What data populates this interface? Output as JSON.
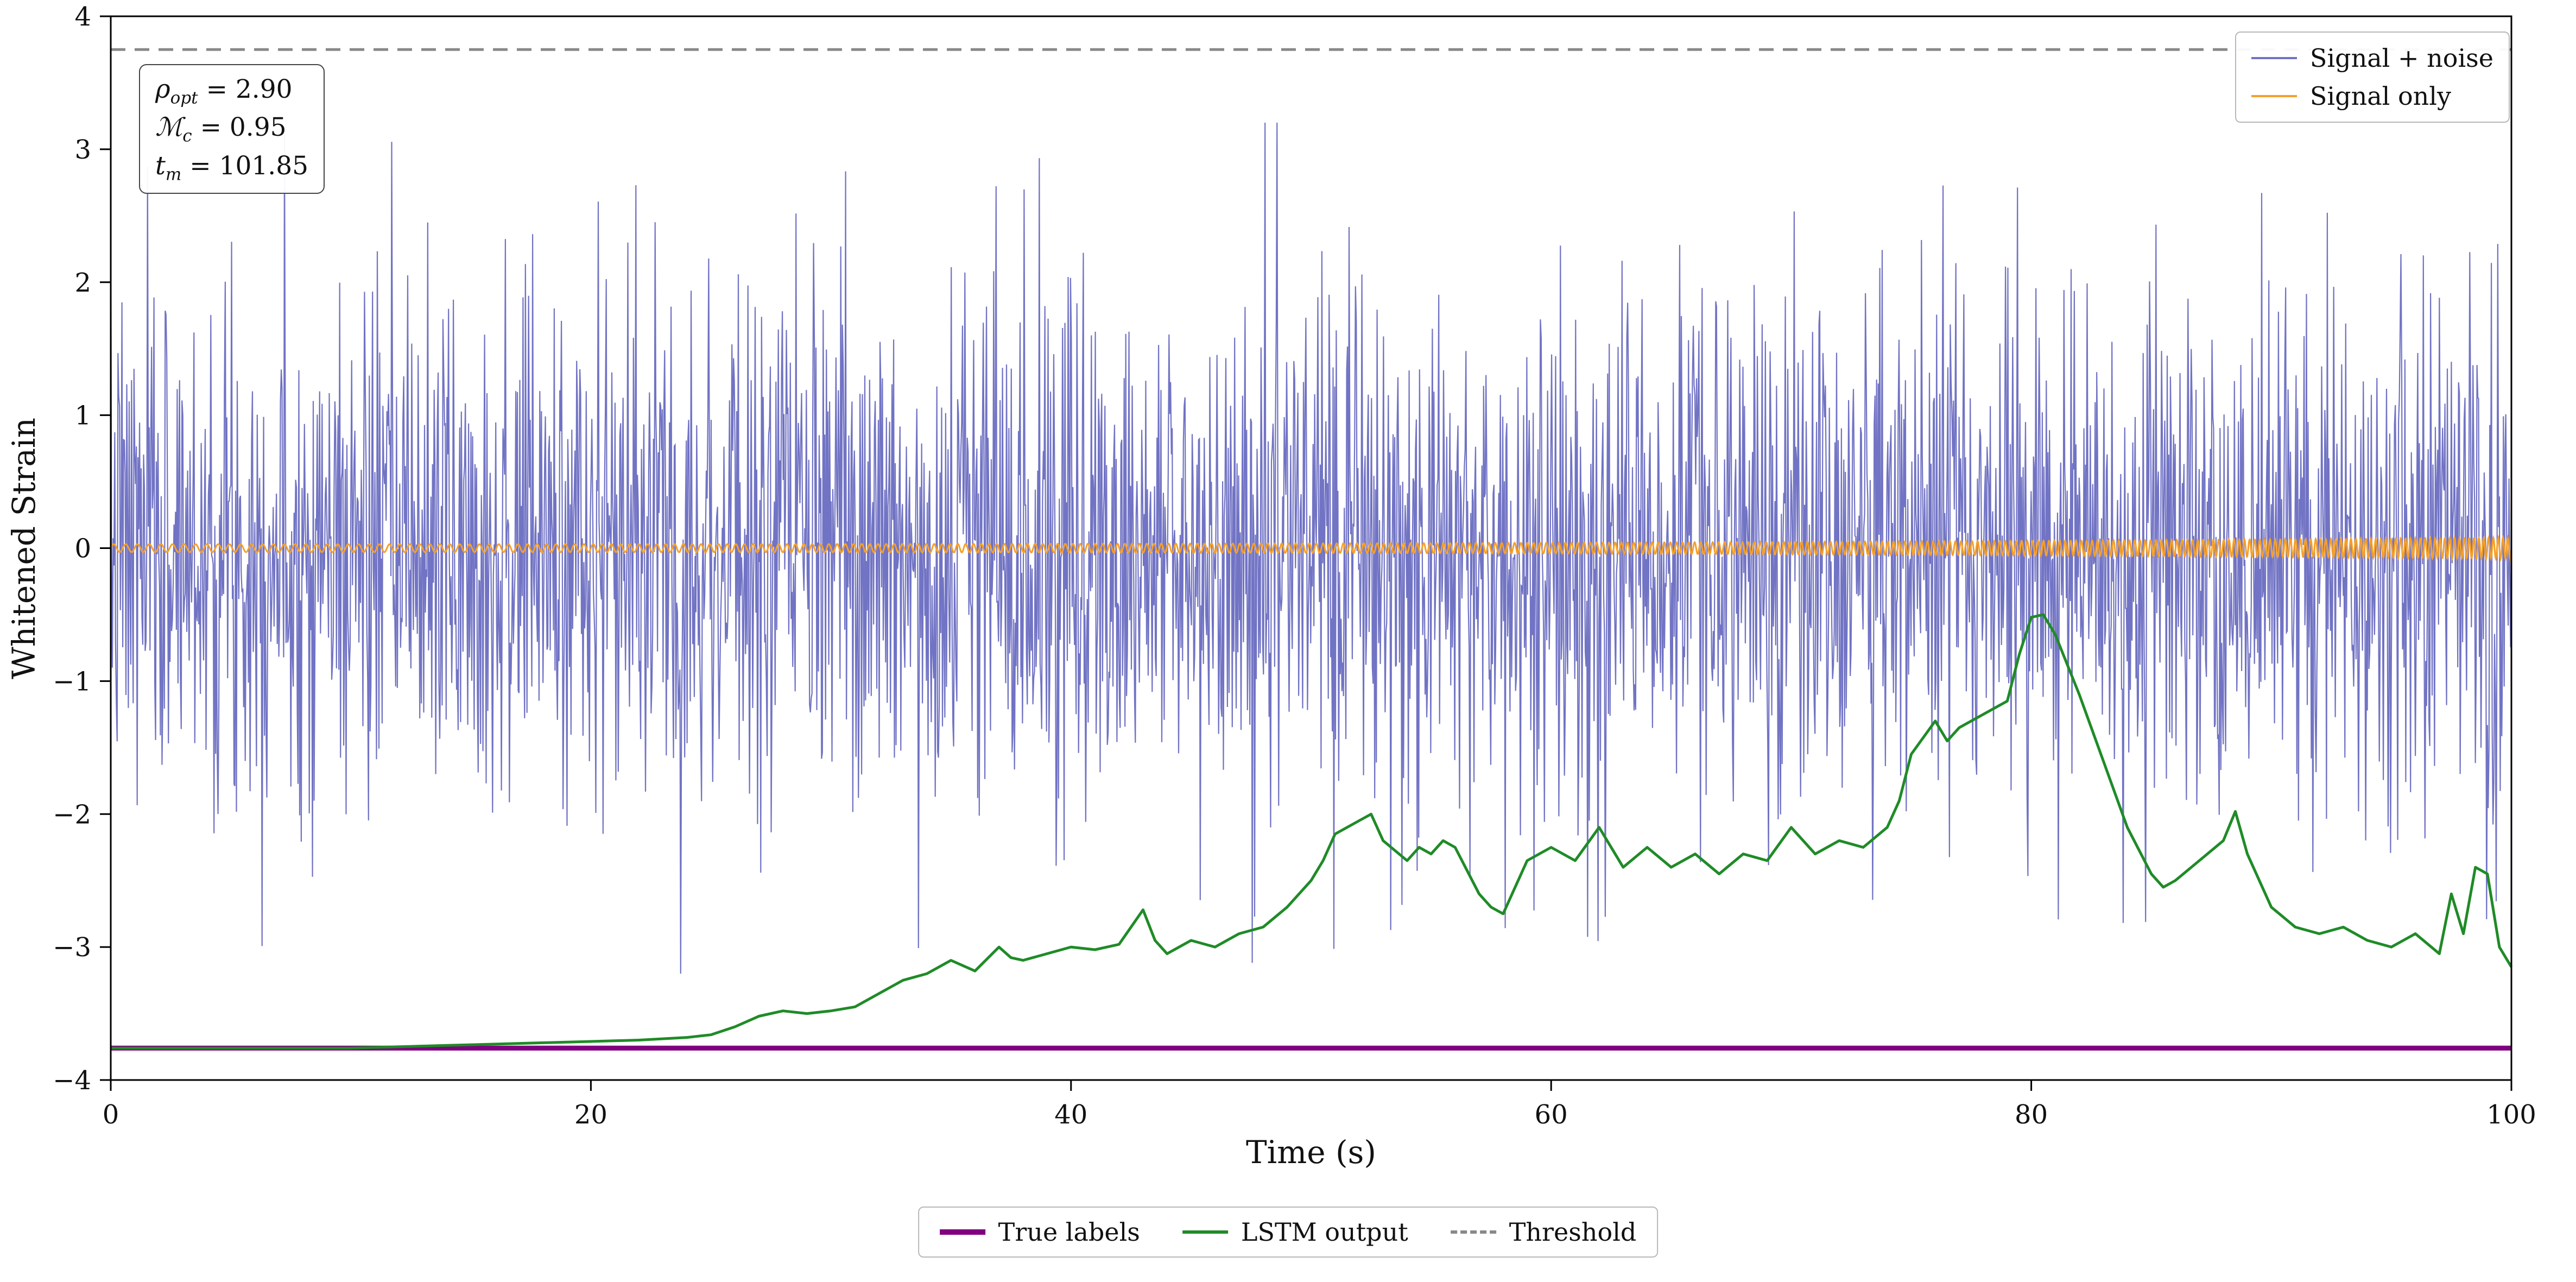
{
  "figure": {
    "xlabel": "Time (s)",
    "ylabel": "Whitened Strain"
  },
  "annotation_box": {
    "lines": [
      {
        "sym": "ρ",
        "sub": "opt",
        "val": " = 2.90"
      },
      {
        "sym": "ℳ",
        "sub": "c",
        "val": " = 0.95"
      },
      {
        "sym": "t",
        "sub": "m",
        "val": " = 101.85"
      }
    ]
  },
  "legend_top_right": {
    "items": [
      {
        "label": "Signal + noise"
      },
      {
        "label": "Signal only"
      }
    ]
  },
  "legend_bottom": {
    "items": [
      {
        "label": "True labels"
      },
      {
        "label": "LSTM output"
      },
      {
        "label": "Threshold"
      }
    ]
  },
  "chart_data": {
    "type": "line",
    "title": "",
    "xlabel": "Time (s)",
    "ylabel": "Whitened Strain",
    "xlim": [
      0,
      100
    ],
    "ylim": [
      -4,
      4
    ],
    "x_ticks": [
      0,
      20,
      40,
      60,
      80,
      100
    ],
    "y_ticks": [
      -4,
      -3,
      -2,
      -1,
      0,
      1,
      2,
      3,
      4
    ],
    "grid": false,
    "legend_positions": {
      "signal_legend": "upper right inside axes",
      "classifier_legend": "centered below axes"
    },
    "annotations": {
      "rho_opt": 2.9,
      "chirp_mass_Mc": 0.95,
      "merger_time_tm": 101.85
    },
    "threshold_value": 3.75,
    "true_labels_value": -3.76,
    "series": [
      {
        "name": "Signal + noise",
        "color": "#7173c4",
        "style": "solid",
        "generated": {
          "kind": "gaussian_noise",
          "n_points": 3000,
          "mean": 0,
          "std": 0.95,
          "clip": 3.2,
          "seed": 7
        }
      },
      {
        "name": "Signal only",
        "color": "#f5a02a",
        "style": "solid",
        "generated": {
          "kind": "chirp",
          "n_points": 6000,
          "f0": 2,
          "chirp_rate": 0.03,
          "amp0": 0.03,
          "amp_growth": 0.05
        }
      },
      {
        "name": "LSTM output",
        "color": "#1f8b27",
        "style": "solid",
        "x": [
          0,
          5,
          10,
          12,
          14,
          16,
          18,
          20,
          22,
          24,
          25,
          26,
          27,
          28,
          29,
          30,
          31,
          32,
          33,
          34,
          35,
          36,
          37,
          37.5,
          38,
          39,
          40,
          41,
          42,
          42.5,
          43,
          43.5,
          44,
          45,
          46,
          47,
          48,
          49,
          50,
          50.5,
          51,
          52,
          52.5,
          53,
          54,
          54.5,
          55,
          55.5,
          56,
          57,
          57.5,
          58,
          58.5,
          59,
          60,
          61,
          62,
          63,
          64,
          65,
          66,
          67,
          68,
          69,
          70,
          71,
          72,
          73,
          74,
          74.5,
          75,
          76,
          76.5,
          77,
          78,
          79,
          79.5,
          80,
          80.5,
          81,
          82,
          83,
          84,
          85,
          85.5,
          86,
          87,
          88,
          88.5,
          89,
          90,
          91,
          92,
          93,
          94,
          95,
          96,
          97,
          97.5,
          98,
          98.5,
          99,
          99.5,
          100
        ],
        "y": [
          -3.76,
          -3.76,
          -3.76,
          -3.75,
          -3.74,
          -3.73,
          -3.72,
          -3.71,
          -3.7,
          -3.68,
          -3.66,
          -3.6,
          -3.52,
          -3.48,
          -3.5,
          -3.48,
          -3.45,
          -3.35,
          -3.25,
          -3.2,
          -3.1,
          -3.18,
          -3.0,
          -3.08,
          -3.1,
          -3.05,
          -3.0,
          -3.02,
          -2.98,
          -2.85,
          -2.72,
          -2.95,
          -3.05,
          -2.95,
          -3.0,
          -2.9,
          -2.85,
          -2.7,
          -2.5,
          -2.35,
          -2.15,
          -2.05,
          -2.0,
          -2.2,
          -2.35,
          -2.25,
          -2.3,
          -2.2,
          -2.25,
          -2.6,
          -2.7,
          -2.75,
          -2.55,
          -2.35,
          -2.25,
          -2.35,
          -2.1,
          -2.4,
          -2.25,
          -2.4,
          -2.3,
          -2.45,
          -2.3,
          -2.35,
          -2.1,
          -2.3,
          -2.2,
          -2.25,
          -2.1,
          -1.9,
          -1.55,
          -1.3,
          -1.45,
          -1.35,
          -1.25,
          -1.15,
          -0.8,
          -0.52,
          -0.5,
          -0.65,
          -1.1,
          -1.6,
          -2.1,
          -2.45,
          -2.55,
          -2.5,
          -2.35,
          -2.2,
          -1.98,
          -2.3,
          -2.7,
          -2.85,
          -2.9,
          -2.85,
          -2.95,
          -3.0,
          -2.9,
          -3.05,
          -2.6,
          -2.9,
          -2.4,
          -2.45,
          -3.0,
          -3.15
        ]
      },
      {
        "name": "True labels",
        "color": "#800080",
        "style": "solid",
        "x": [
          0,
          100
        ],
        "y": [
          -3.76,
          -3.76
        ]
      },
      {
        "name": "Threshold",
        "color": "#888888",
        "style": "dashed",
        "x": [
          0,
          100
        ],
        "y": [
          3.75,
          3.75
        ]
      }
    ]
  }
}
